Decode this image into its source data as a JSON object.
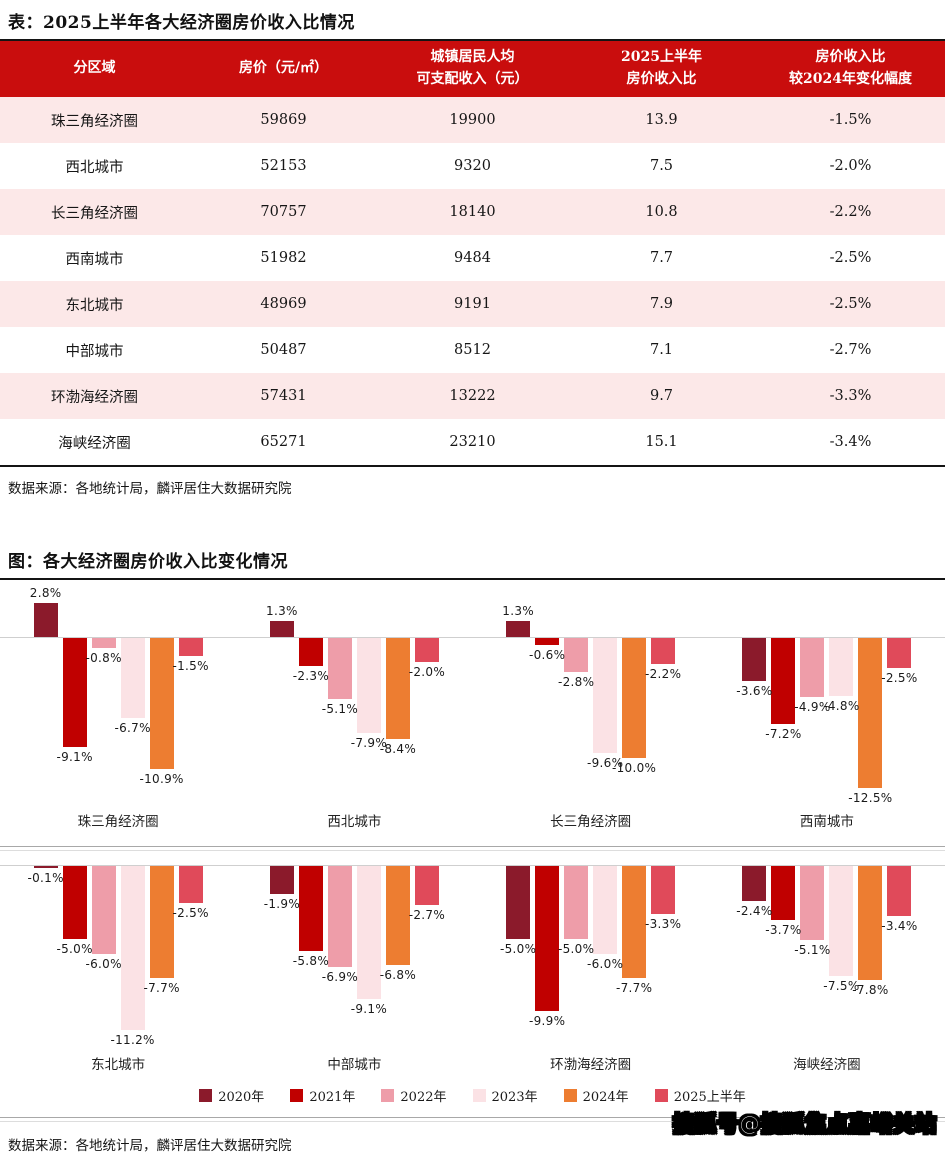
{
  "table_section": {
    "title": "表：2025上半年各大经济圈房价收入比情况",
    "header": [
      [
        "分区域"
      ],
      [
        "房价（元/㎡）"
      ],
      [
        "城镇居民人均",
        "可支配收入（元）"
      ],
      [
        "2025上半年",
        "房价收入比"
      ],
      [
        "房价收入比",
        "较2024年变化幅度"
      ]
    ],
    "rows": [
      [
        "珠三角经济圈",
        "59869",
        "19900",
        "13.9",
        "-1.5%"
      ],
      [
        "西北城市",
        "52153",
        "9320",
        "7.5",
        "-2.0%"
      ],
      [
        "长三角经济圈",
        "70757",
        "18140",
        "10.8",
        "-2.2%"
      ],
      [
        "西南城市",
        "51982",
        "9484",
        "7.7",
        "-2.5%"
      ],
      [
        "东北城市",
        "48969",
        "9191",
        "7.9",
        "-2.5%"
      ],
      [
        "中部城市",
        "50487",
        "8512",
        "7.1",
        "-2.7%"
      ],
      [
        "环渤海经济圈",
        "57431",
        "13222",
        "9.7",
        "-3.3%"
      ],
      [
        "海峡经济圈",
        "65271",
        "23210",
        "15.1",
        "-3.4%"
      ]
    ],
    "source": "数据来源：各地统计局，麟评居住大数据研究院"
  },
  "chart_section": {
    "title": "图：各大经济圈房价收入比变化情况",
    "source": "数据来源：各地统计局，麟评居住大数据研究院",
    "watermark": "搜狐号@搜狐焦点嘉峪关站"
  },
  "chart_data": {
    "type": "bar",
    "title": "图：各大经济圈房价收入比变化情况",
    "unit": "%",
    "legend_position": "bottom",
    "grid": false,
    "series_names": [
      "2020年",
      "2021年",
      "2022年",
      "2023年",
      "2024年",
      "2025上半年"
    ],
    "series_colors": [
      "#8B1A2B",
      "#C00000",
      "#EE9DA9",
      "#FBE2E5",
      "#ED7D31",
      "#E04A5A"
    ],
    "panels": [
      {
        "category": "珠三角经济圈",
        "values": [
          2.8,
          -9.1,
          -0.8,
          -6.7,
          -10.9,
          -1.5
        ]
      },
      {
        "category": "西北城市",
        "values": [
          1.3,
          -2.3,
          -5.1,
          -7.9,
          -8.4,
          -2.0
        ]
      },
      {
        "category": "长三角经济圈",
        "values": [
          1.3,
          -0.6,
          -2.8,
          -9.6,
          -10.0,
          -2.2
        ]
      },
      {
        "category": "西南城市",
        "values": [
          -3.6,
          -7.2,
          -4.9,
          -4.8,
          -12.5,
          -2.5
        ]
      },
      {
        "category": "东北城市",
        "values": [
          -0.1,
          -5.0,
          -6.0,
          -11.2,
          -7.7,
          -2.5
        ]
      },
      {
        "category": "中部城市",
        "values": [
          -1.9,
          -5.8,
          -6.9,
          -9.1,
          -6.8,
          -2.7
        ]
      },
      {
        "category": "环渤海经济圈",
        "values": [
          -5.0,
          -9.9,
          -5.0,
          -6.0,
          -7.7,
          -3.3
        ]
      },
      {
        "category": "海峡经济圈",
        "values": [
          -2.4,
          -3.7,
          -5.1,
          -7.5,
          -7.8,
          -3.4
        ]
      }
    ]
  },
  "colors": {
    "table_header_bg": "#C90D0D",
    "table_stripe_bg": "#FCE8E8",
    "zero_line": "#CFCFCF"
  }
}
